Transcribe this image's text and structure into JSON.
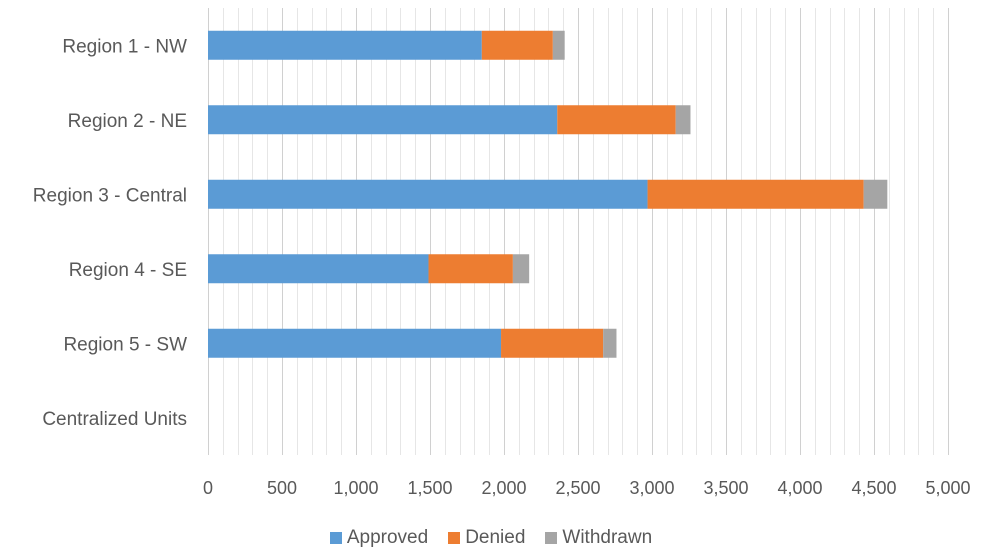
{
  "chart_data": {
    "type": "bar",
    "orientation": "horizontal",
    "stacked": true,
    "categories": [
      "Region 1 - NW",
      "Region 2 - NE",
      "Region 3 - Central",
      "Region 4 - SE",
      "Region 5 - SW",
      "Centralized Units"
    ],
    "series": [
      {
        "name": "Approved",
        "color": "#5B9BD5",
        "values": [
          1850,
          2360,
          2970,
          1490,
          1980,
          0
        ]
      },
      {
        "name": "Denied",
        "color": "#ED7D31",
        "values": [
          480,
          800,
          1460,
          570,
          690,
          0
        ]
      },
      {
        "name": "Withdrawn",
        "color": "#A5A5A5",
        "values": [
          80,
          100,
          160,
          110,
          90,
          0
        ]
      }
    ],
    "xlim": [
      0,
      5000
    ],
    "xticks": [
      "0",
      "500",
      "1,000",
      "1,500",
      "2,000",
      "2,500",
      "3,000",
      "3,500",
      "4,000",
      "4,500",
      "5,000"
    ],
    "grid": true,
    "legend_position": "bottom",
    "title": "",
    "xlabel": "",
    "ylabel": ""
  }
}
